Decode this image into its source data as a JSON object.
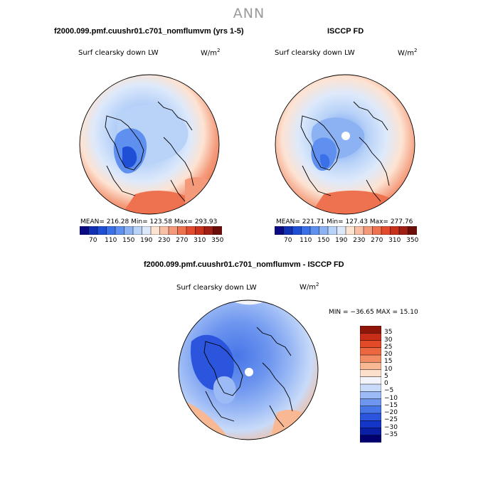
{
  "header": {
    "title": "ANN"
  },
  "colors": {
    "seq": [
      "#0a0a82",
      "#1230b4",
      "#1f4fd6",
      "#3a70e8",
      "#6090ef",
      "#8cb2f4",
      "#b8d2f8",
      "#dde9fb",
      "#fde3d2",
      "#f9c0a5",
      "#f49a7a",
      "#ee7250",
      "#e24b2e",
      "#c8321d",
      "#a01e14",
      "#6b0e0a"
    ],
    "diff": [
      "#02006e",
      "#0a1ea6",
      "#1436c8",
      "#2a55dc",
      "#4676e8",
      "#6e96ef",
      "#9cbaf5",
      "#c9dbf9",
      "#f3f4f9",
      "#fde0cc",
      "#f8b894",
      "#f28c64",
      "#ec6740",
      "#e24a28",
      "#c82e17",
      "#901509"
    ]
  },
  "chart_data": [
    {
      "type": "heatmap",
      "title": "f2000.099.pmf.cuushr01.c701_nomflumvm (yrs 1-5)",
      "label": "Surf clearsky down LW",
      "units_main": "W/m",
      "units_sup": "2",
      "stats_text": "MEAN= 216.28   Min= 123.58   Max= 293.93",
      "mean": 216.28,
      "min": 123.58,
      "max": 293.93,
      "colorbar_ticks": [
        "70",
        "110",
        "150",
        "190",
        "230",
        "270",
        "310",
        "350"
      ],
      "levels": [
        70,
        90,
        110,
        130,
        150,
        170,
        190,
        210,
        230,
        250,
        270,
        290,
        310,
        330,
        350
      ]
    },
    {
      "type": "heatmap",
      "title": "ISCCP FD",
      "label": "Surf clearsky down LW",
      "units_main": "W/m",
      "units_sup": "2",
      "stats_text": "MEAN= 221.71   Min= 127.43   Max= 277.76",
      "mean": 221.71,
      "min": 127.43,
      "max": 277.76,
      "colorbar_ticks": [
        "70",
        "110",
        "150",
        "190",
        "230",
        "270",
        "310",
        "350"
      ],
      "levels": [
        70,
        90,
        110,
        130,
        150,
        170,
        190,
        210,
        230,
        250,
        270,
        290,
        310,
        330,
        350
      ]
    },
    {
      "type": "heatmap",
      "title": "f2000.099.pmf.cuushr01.c701_nomflumvm - ISCCP FD",
      "label": "Surf clearsky down LW",
      "units_main": "W/m",
      "units_sup": "2",
      "stats_text": "MIN = −36.65  MAX =   15.10",
      "min": -36.65,
      "max": 15.1,
      "colorbar_labels": [
        "35",
        "30",
        "25",
        "20",
        "15",
        "10",
        "5",
        "0",
        "−5",
        "−10",
        "−15",
        "−20",
        "−25",
        "−30",
        "−35"
      ]
    }
  ]
}
